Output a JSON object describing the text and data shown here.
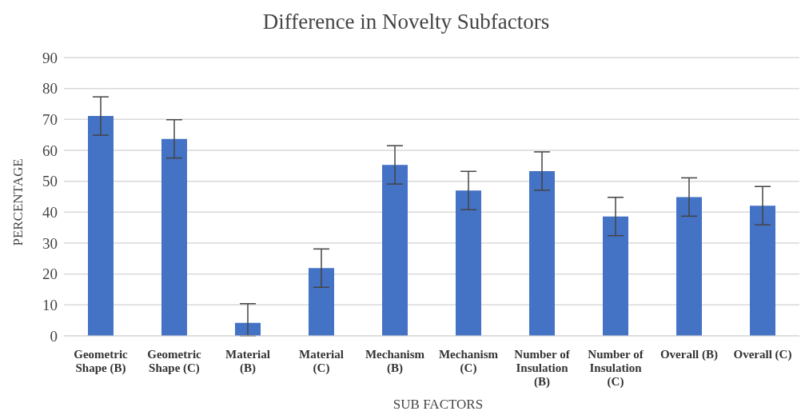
{
  "chart_data": {
    "type": "bar",
    "title": "Difference in Novelty Subfactors",
    "xlabel": "SUB FACTORS",
    "ylabel": "PERCENTAGE",
    "categories": [
      "Geometric Shape (B)",
      "Geometric Shape (C)",
      "Material (B)",
      "Material (C)",
      "Mechanism (B)",
      "Mechanism (C)",
      "Number of Insulation (B)",
      "Number of Insulation (C)",
      "Overall (B)",
      "Overall (C)"
    ],
    "values": [
      71.1,
      63.7,
      4.2,
      21.9,
      55.3,
      47.0,
      53.3,
      38.6,
      44.9,
      42.1
    ],
    "errors": [
      6.2,
      6.2,
      [
        0,
        10.4
      ],
      6.2,
      6.2,
      6.2,
      6.2,
      6.2,
      6.2,
      6.2
    ],
    "color": "#4472c4",
    "ylim": [
      0,
      90
    ],
    "yticks": [
      0,
      10,
      20,
      30,
      40,
      50,
      60,
      70,
      80,
      90
    ],
    "grid": "y",
    "legend": false
  }
}
